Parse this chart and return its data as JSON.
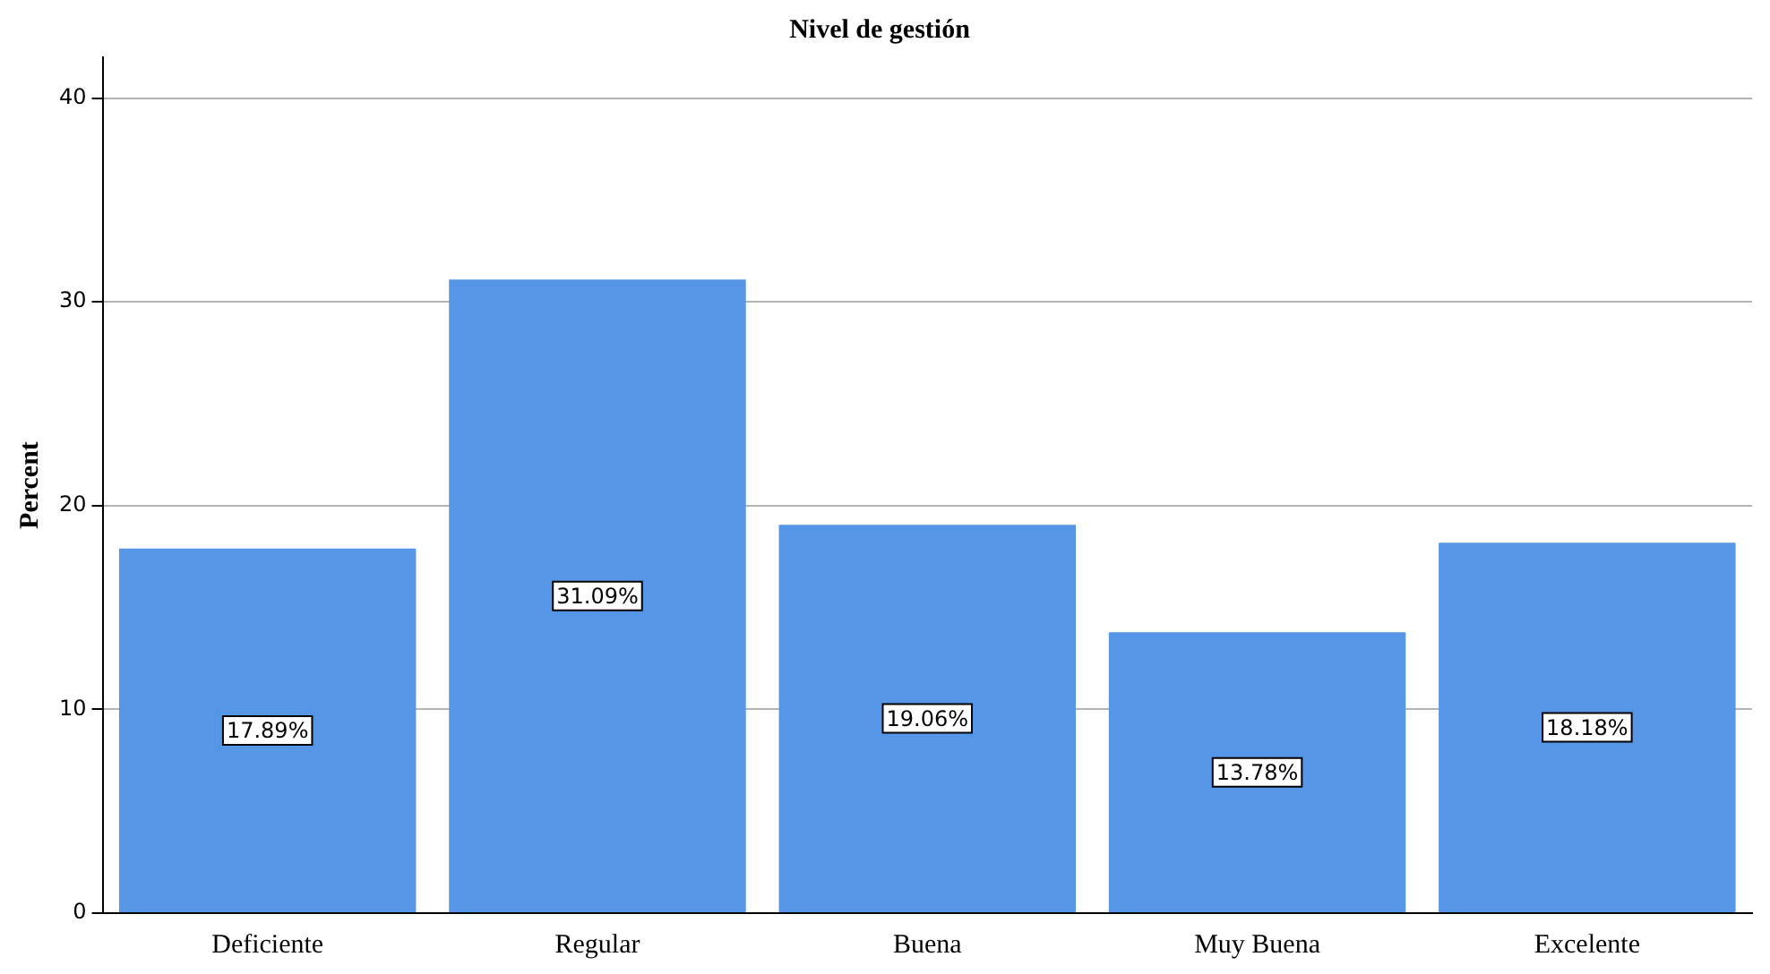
{
  "chart_data": {
    "type": "bar",
    "title": "Nivel de gestión",
    "ylabel": "Percent",
    "categories": [
      "Deficiente",
      "Regular",
      "Buena",
      "Muy Buena",
      "Excelente"
    ],
    "values": [
      17.89,
      31.09,
      19.06,
      13.78,
      18.18
    ],
    "value_labels": [
      "17.89%",
      "31.09%",
      "19.06%",
      "13.78%",
      "18.18%"
    ],
    "color": "#5596e6",
    "ylim": [
      0,
      42
    ],
    "yticks": [
      0,
      10,
      20,
      30,
      40
    ],
    "grid": "y",
    "legend": false
  }
}
